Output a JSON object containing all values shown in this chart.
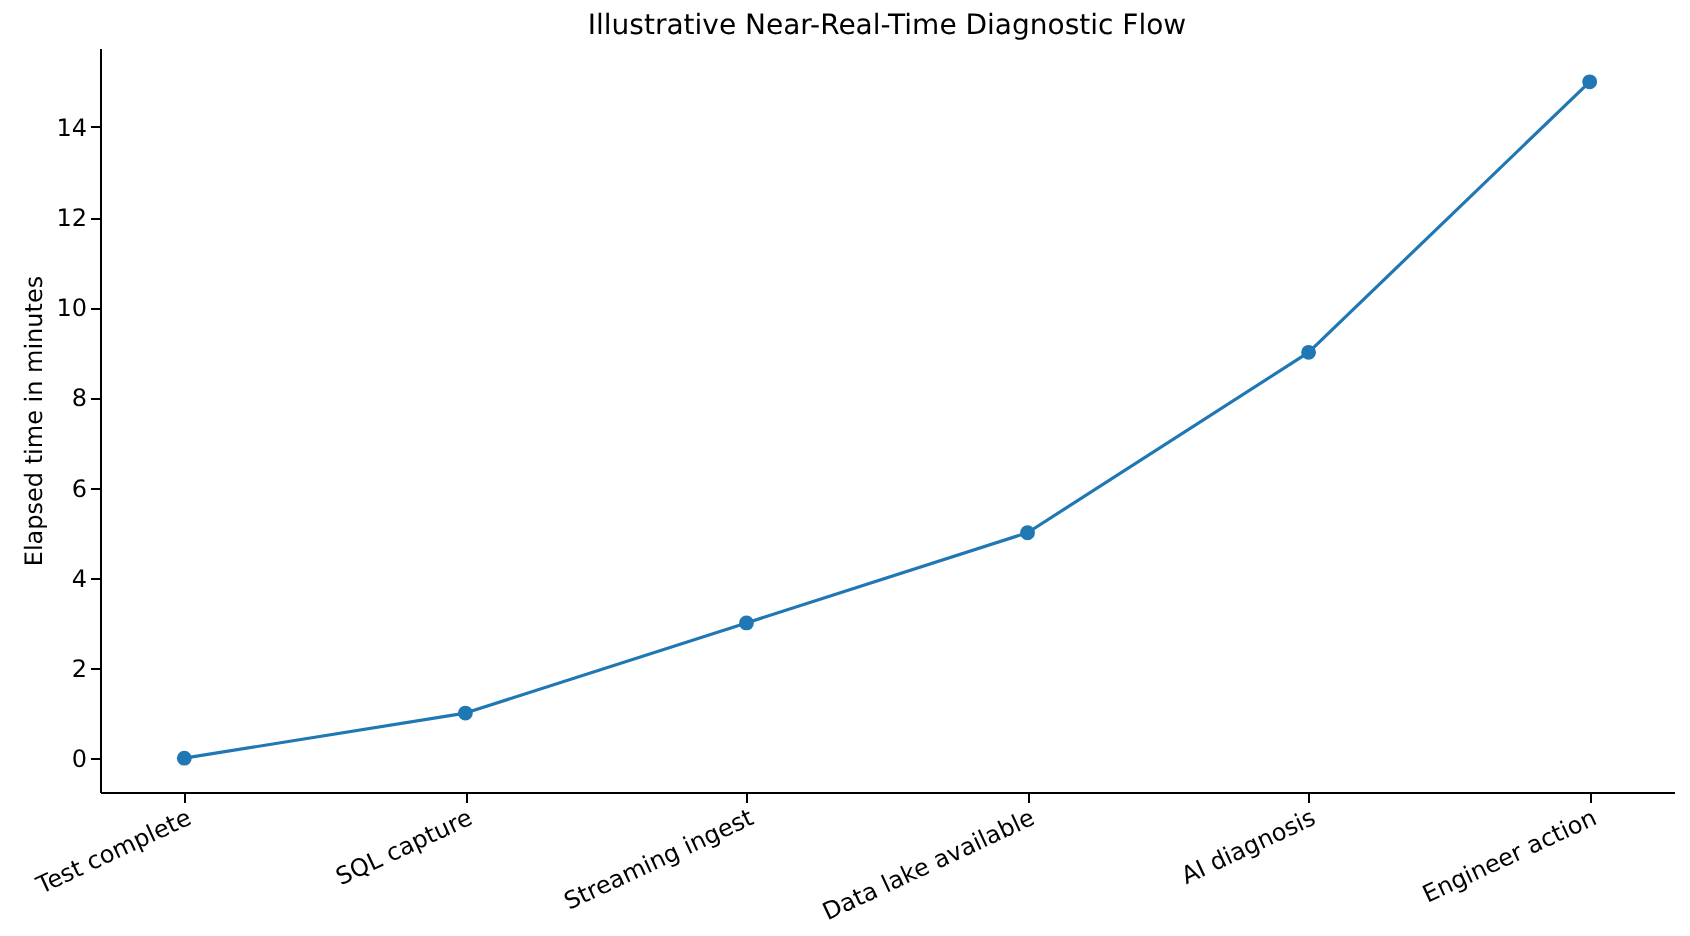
{
  "chart_data": {
    "type": "line",
    "title": "Illustrative Near-Real-Time Diagnostic Flow",
    "ylabel": "Elapsed time in minutes",
    "categories": [
      "Test complete",
      "SQL capture",
      "Streaming ingest",
      "Data lake available",
      "AI diagnosis",
      "Engineer action"
    ],
    "series": [
      {
        "color": "#1f77b4",
        "values": [
          0,
          1,
          3,
          5,
          9,
          15
        ]
      }
    ],
    "ylim": [
      -0.75,
      15.75
    ],
    "yticks": [
      0,
      2,
      4,
      6,
      8,
      10,
      12,
      14
    ],
    "marker": "circle",
    "line_style": "solid",
    "grid": false
  }
}
